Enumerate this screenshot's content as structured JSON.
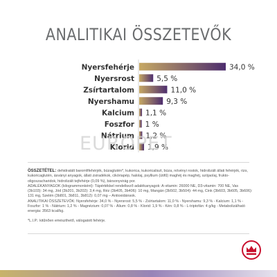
{
  "title": "ANALITIKAI ÖSSZETEVŐK",
  "watermark": "EUROPET",
  "colors": {
    "bar_gold": "#c6a863",
    "bar_purple": "#4d2d6e",
    "text": "#333333",
    "title": "#6a6c6e"
  },
  "chart_data": {
    "type": "bar",
    "orientation": "horizontal",
    "categories": [
      "Nyersfehérje",
      "Nyersrost",
      "Zsírtartalom",
      "Nyershamu",
      "Kalcium",
      "Foszfor",
      "Nátrium",
      "Klorid"
    ],
    "values": [
      34.0,
      5.5,
      11.0,
      9.3,
      1.1,
      1.0,
      1.2,
      1.9
    ],
    "value_labels": [
      "34,0 %",
      "5,5 %",
      "11,0 %",
      "9,3 %",
      "1,1 %",
      "1 %",
      "1,2 %",
      "1,9 %"
    ],
    "unit": "%",
    "xlim": [
      0,
      34
    ],
    "grid": false,
    "legend": "none"
  },
  "composition": {
    "heading": "ÖSSZETÉTEL:",
    "paragraphs": [
      "dehidratált baromfifehérjék, búzaglutén*, kukorica, kukoricaliszt, búza, növényi rostok, hidrolizált állati fehérjék, rizs, kukoricaglutén, ásványi anyagok, állati zsiradékok, cikóriapép, halolaj, psyllium (útifű) maghéj és maghéj, szójaolaj, frukto-oligoszacharidok, hidrolizált tejfehérje (0,09 %), bársonyvirág por.",
      "ADALÉKANYAGOK (kilogrammonként): Tápértékkel rendelkező adalékanyagok: A-vitamin: 26000 NE, D3-vitamin: 700 NE, Vas (3b103): 34 mg, Jód (3b201, 3b202): 3,4 mg, Réz (3b405, 3b406): 10 mg, Mangán (3b502, 3b504): 44 mg, Cink (3b603, 3b605, 3b606): 131 mg, Szelén (3b801, 3b811, 3b812): 0,07 mg – Antioxidánsok.",
      "ANALITIKAI ÖSSZETEVŐK: Nyersfehérje: 34,0 % - Nyersrost: 5,5 % - Zsírtartalom: 11,0 % - Nyershamu: 9,3 % - Kalcium: 1,1 % - Foszfor: 1 % - Nátrium: 1,2 % - Magnézium: 0,07 % - Álium: 0,8 % - Klorid: 1,9 % - Kén: 0,8 % - L-triptofán: 4 g/kg - Metabolizálható energia: 3563 kcal/kg."
    ],
    "footnote": "*L.I.P.: kitűnően emészthető, válogatott fehérje."
  }
}
